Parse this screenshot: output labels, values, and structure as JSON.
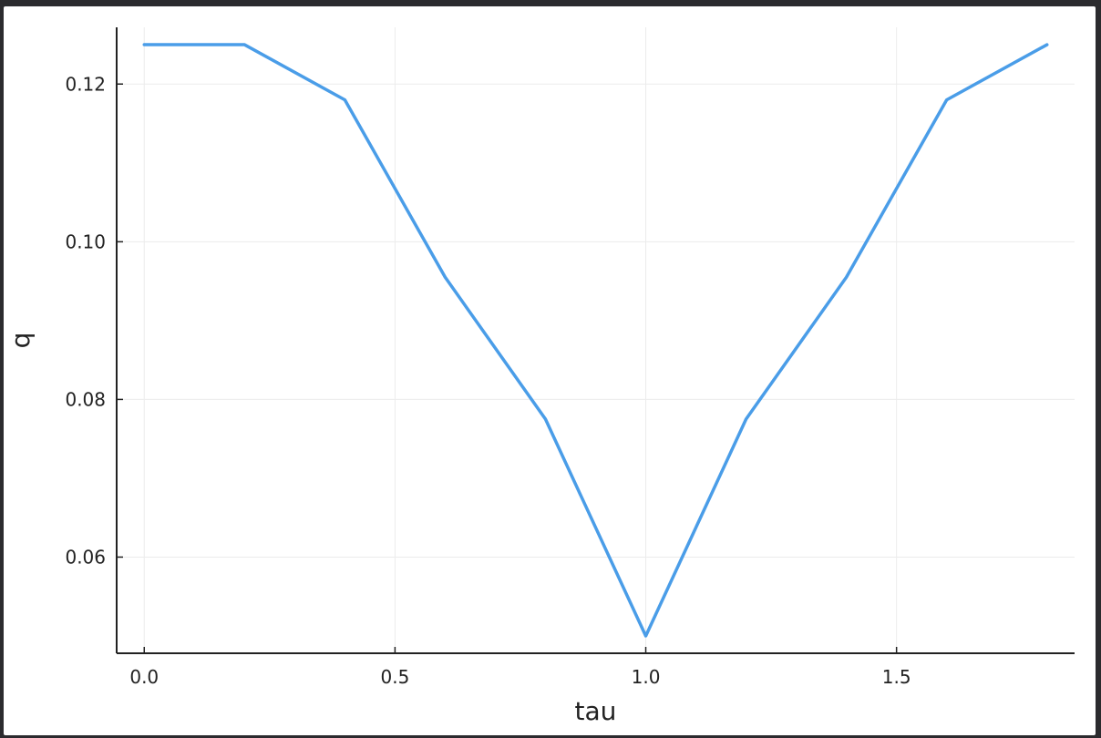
{
  "chart_data": {
    "type": "line",
    "title": "",
    "xlabel": "tau",
    "ylabel": "q",
    "x_ticks": [
      "0.0",
      "0.5",
      "1.0",
      "1.5"
    ],
    "y_ticks": [
      "0.06",
      "0.08",
      "0.10",
      "0.12"
    ],
    "xlim": [
      -0.055,
      1.855
    ],
    "ylim": [
      0.0478,
      0.1272
    ],
    "grid": true,
    "legend": "none",
    "colors": {
      "line": "#4a9de8",
      "grid": "#ececec",
      "axis": "#222222"
    },
    "series": [
      {
        "x": [
          0.0,
          0.2,
          0.4,
          0.6,
          0.8,
          1.0,
          1.2,
          1.4,
          1.6,
          1.8
        ],
        "values": [
          0.125,
          0.125,
          0.118,
          0.0955,
          0.0775,
          0.05,
          0.0775,
          0.0955,
          0.118,
          0.125
        ]
      }
    ]
  }
}
